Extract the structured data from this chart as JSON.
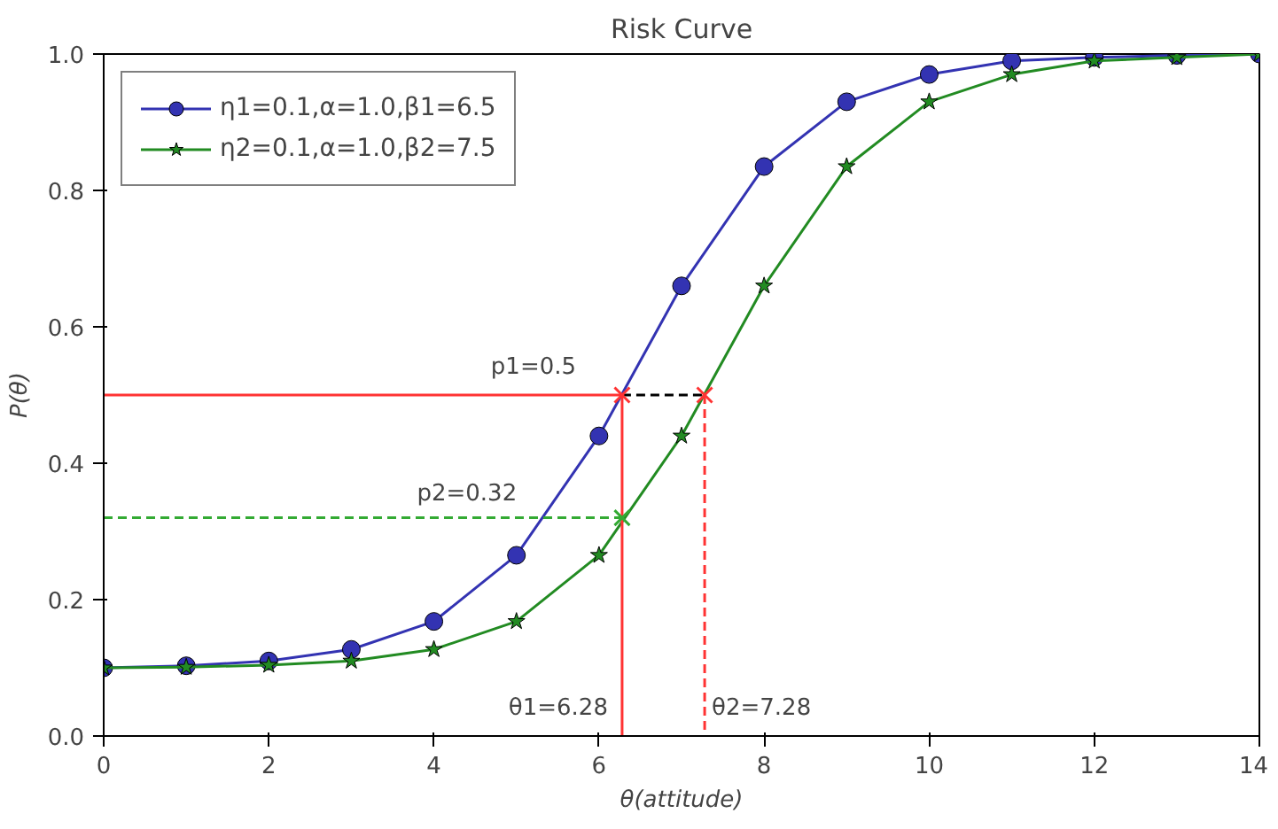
{
  "chart_data": {
    "type": "line",
    "title": "Risk Curve",
    "xlabel": "θ(attitude)",
    "ylabel": "P(θ)",
    "x": [
      0,
      1,
      2,
      3,
      4,
      5,
      6,
      7,
      8,
      9,
      10,
      11,
      12,
      13,
      14
    ],
    "xlim": [
      0,
      14
    ],
    "ylim": [
      0,
      1
    ],
    "xticks": [
      0,
      2,
      4,
      6,
      8,
      10,
      12,
      14
    ],
    "yticks": [
      {
        "value": 0,
        "label": "0.0"
      },
      0.2,
      0.4,
      0.6,
      0.8,
      {
        "value": 1,
        "label": "1.0"
      }
    ],
    "grid": false,
    "legend": "top left",
    "series": [
      {
        "name": "η1=0.1,α=1.0,β1=6.5",
        "color": "#3333b2",
        "marker": "circle",
        "values": [
          0.1,
          0.103,
          0.11,
          0.127,
          0.168,
          0.265,
          0.44,
          0.66,
          0.835,
          0.93,
          0.97,
          0.99,
          0.995,
          0.998,
          1.0
        ]
      },
      {
        "name": "η2=0.1,α=1.0,β2=7.5",
        "color": "#228b22",
        "marker": "star",
        "values": [
          0.1,
          0.101,
          0.104,
          0.11,
          0.127,
          0.168,
          0.265,
          0.44,
          0.66,
          0.835,
          0.93,
          0.97,
          0.99,
          0.995,
          1.0
        ]
      },
      {
        "type": "line",
        "color": "#ff3333",
        "marker": "none",
        "line_style": "solid",
        "x": [
          0,
          6.28,
          6.28
        ],
        "values": [
          0.5,
          0.5,
          0
        ]
      },
      {
        "type": "line",
        "color": "#000000",
        "marker": "none",
        "line_style": "dashed",
        "x": [
          6.28,
          7.28
        ],
        "values": [
          0.5,
          0.5
        ]
      },
      {
        "type": "line",
        "color": "#ff3333",
        "marker": "none",
        "line_style": "dashed",
        "x": [
          7.28,
          7.28
        ],
        "values": [
          0.5,
          0
        ]
      },
      {
        "type": "line",
        "color": "#33aa33",
        "marker": "none",
        "line_style": "dashed",
        "x": [
          0,
          6.28
        ],
        "values": [
          0.32,
          0.32
        ]
      },
      {
        "type": "scatter",
        "color": "#ff3333",
        "marker": "cross",
        "x": [
          6.28,
          7.28
        ],
        "values": [
          0.5,
          0.5
        ]
      },
      {
        "type": "scatter",
        "color": "#33aa33",
        "marker": "cross",
        "x": [
          6.28
        ],
        "values": [
          0.32
        ]
      }
    ],
    "annotations": [
      {
        "text": "p1=0.5",
        "x": 6.28,
        "y": 0.5
      },
      {
        "text": "p2=0.32",
        "x": 4.4,
        "y": 0.32
      },
      {
        "text": "θ1=6.28",
        "x": 6.28,
        "y": 0
      },
      {
        "text": "θ2=7.28",
        "x": 7.28,
        "y": 0
      }
    ]
  }
}
